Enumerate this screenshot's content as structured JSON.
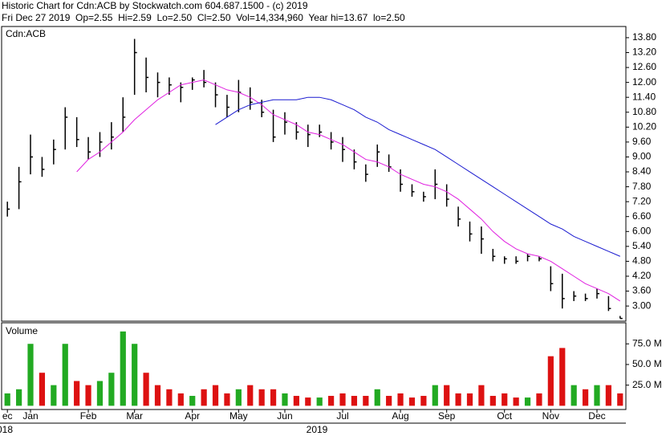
{
  "header": {
    "title": "Historic Chart for Cdn:ACB by Stockwatch.com 604.687.1500 - (c) 2019",
    "quote": "Fri Dec 27 2019  Op=2.55  Hi=2.59  Lo=2.50  Cl=2.50  Vol=14,334,960  Year hi=13.67  lo=2.50"
  },
  "chart_data": [
    {
      "type": "ohlc",
      "title": "Cdn:ACB",
      "series": [
        {
          "name": "high",
          "color": "#000000",
          "values": [
            7.2,
            8.6,
            9.9,
            9.0,
            9.7,
            11.0,
            10.6,
            9.8,
            10.0,
            10.4,
            11.4,
            13.75,
            13.0,
            12.4,
            12.2,
            12.0,
            12.2,
            12.5,
            12.0,
            11.5,
            12.1,
            11.8,
            11.3,
            10.9,
            10.8,
            10.4,
            10.3,
            10.3,
            10.0,
            9.8,
            9.3,
            8.7,
            9.5,
            9.1,
            8.5,
            7.9,
            7.6,
            8.5,
            7.9,
            7.0,
            6.4,
            6.2,
            5.3,
            5.0,
            5.0,
            5.1,
            5.0,
            4.6,
            4.3,
            3.6,
            3.5,
            3.7,
            3.4,
            2.6
          ]
        },
        {
          "name": "low",
          "color": "#000000",
          "values": [
            6.6,
            6.9,
            8.3,
            8.2,
            8.7,
            9.3,
            9.4,
            8.9,
            9.0,
            9.3,
            10.0,
            11.5,
            11.6,
            11.4,
            11.5,
            11.2,
            11.7,
            11.8,
            11.0,
            10.6,
            10.8,
            10.9,
            10.6,
            9.6,
            9.9,
            9.7,
            9.4,
            9.8,
            9.3,
            8.8,
            8.5,
            8.0,
            8.6,
            8.4,
            7.6,
            7.4,
            7.2,
            7.3,
            7.0,
            6.2,
            5.6,
            5.1,
            4.8,
            4.7,
            4.7,
            4.8,
            4.8,
            3.6,
            2.9,
            3.2,
            3.2,
            3.3,
            2.8,
            2.5
          ]
        },
        {
          "name": "close",
          "color": "#000000",
          "values": [
            6.9,
            8.0,
            9.0,
            8.5,
            9.3,
            10.6,
            9.7,
            9.2,
            9.6,
            9.8,
            10.6,
            13.2,
            12.2,
            12.0,
            11.9,
            11.8,
            12.1,
            12.0,
            11.5,
            11.0,
            11.6,
            11.2,
            10.8,
            9.8,
            10.4,
            10.0,
            9.9,
            10.0,
            9.6,
            9.3,
            8.8,
            8.3,
            9.2,
            8.6,
            7.9,
            7.6,
            7.4,
            7.9,
            7.3,
            6.5,
            5.9,
            5.7,
            5.0,
            4.9,
            4.8,
            5.0,
            4.9,
            3.9,
            3.3,
            3.4,
            3.3,
            3.5,
            2.9,
            2.5
          ]
        },
        {
          "name": "short-ma",
          "color": "#e020e0",
          "values": [
            null,
            null,
            null,
            null,
            null,
            null,
            8.4,
            8.9,
            9.2,
            9.6,
            10.0,
            10.5,
            10.9,
            11.3,
            11.6,
            11.9,
            12.0,
            12.1,
            11.9,
            11.7,
            11.6,
            11.4,
            11.1,
            10.7,
            10.5,
            10.3,
            10.0,
            9.9,
            9.7,
            9.5,
            9.2,
            8.9,
            8.8,
            8.6,
            8.3,
            8.1,
            7.9,
            7.8,
            7.6,
            7.3,
            6.9,
            6.5,
            6.0,
            5.6,
            5.3,
            5.1,
            5.0,
            4.8,
            4.5,
            4.2,
            3.9,
            3.7,
            3.5,
            3.2
          ]
        },
        {
          "name": "long-ma",
          "color": "#1a1ad0",
          "values": [
            null,
            null,
            null,
            null,
            null,
            null,
            null,
            null,
            null,
            null,
            null,
            null,
            null,
            null,
            null,
            null,
            null,
            null,
            10.3,
            10.6,
            10.9,
            11.1,
            11.2,
            11.3,
            11.3,
            11.3,
            11.4,
            11.4,
            11.3,
            11.1,
            10.9,
            10.6,
            10.4,
            10.1,
            9.9,
            9.7,
            9.5,
            9.3,
            9.0,
            8.7,
            8.4,
            8.1,
            7.8,
            7.5,
            7.2,
            6.9,
            6.6,
            6.3,
            6.1,
            5.8,
            5.6,
            5.4,
            5.2,
            5.0
          ]
        }
      ],
      "ylim": [
        2.39,
        14.25
      ],
      "yticks": [
        {
          "value": 3.0,
          "label": "3.00"
        },
        {
          "value": 3.6,
          "label": "3.60"
        },
        {
          "value": 4.2,
          "label": "4.20"
        },
        {
          "value": 4.8,
          "label": "4.80"
        },
        {
          "value": 5.4,
          "label": "5.40"
        },
        {
          "value": 6.0,
          "label": "6.00"
        },
        {
          "value": 6.6,
          "label": "6.60"
        },
        {
          "value": 7.2,
          "label": "7.20"
        },
        {
          "value": 7.8,
          "label": "7.80"
        },
        {
          "value": 8.4,
          "label": "8.40"
        },
        {
          "value": 9.0,
          "label": "9.00"
        },
        {
          "value": 9.6,
          "label": "9.60"
        },
        {
          "value": 10.2,
          "label": "10.20"
        },
        {
          "value": 10.8,
          "label": "10.80"
        },
        {
          "value": 11.4,
          "label": "11.40"
        },
        {
          "value": 12.0,
          "label": "12.00"
        },
        {
          "value": 12.6,
          "label": "12.60"
        },
        {
          "value": 13.2,
          "label": "13.20"
        },
        {
          "value": 13.8,
          "label": "13.80"
        }
      ]
    },
    {
      "type": "bar",
      "title": "Volume",
      "categories": [
        "ec",
        null,
        "Jan",
        null,
        null,
        null,
        null,
        "Feb",
        null,
        null,
        null,
        "Mar",
        null,
        null,
        null,
        null,
        "Apr",
        null,
        null,
        null,
        "May",
        null,
        null,
        null,
        "Jun",
        null,
        null,
        null,
        null,
        "Jul",
        null,
        null,
        null,
        null,
        "Aug",
        null,
        null,
        null,
        "Sep",
        null,
        null,
        null,
        null,
        "Oct",
        null,
        null,
        null,
        "Nov",
        null,
        null,
        null,
        "Dec",
        null,
        null
      ],
      "year_labels": [
        "018",
        "2019"
      ],
      "values": [
        15,
        20,
        75,
        40,
        25,
        75,
        30,
        25,
        30,
        40,
        90,
        75,
        40,
        25,
        20,
        15,
        12,
        20,
        25,
        15,
        20,
        25,
        20,
        20,
        15,
        12,
        10,
        10,
        12,
        15,
        12,
        12,
        20,
        12,
        15,
        10,
        12,
        25,
        25,
        15,
        15,
        25,
        12,
        15,
        10,
        10,
        15,
        60,
        70,
        25,
        20,
        25,
        25,
        15
      ],
      "colors": {
        "up": "#22aa22",
        "down": "#dd1111"
      },
      "ylim": [
        -4.5,
        100.5
      ],
      "yticks": [
        {
          "value": 25,
          "label": "25.0 M"
        },
        {
          "value": 50,
          "label": "50.0 M"
        },
        {
          "value": 75,
          "label": "75.0 M"
        }
      ]
    }
  ]
}
